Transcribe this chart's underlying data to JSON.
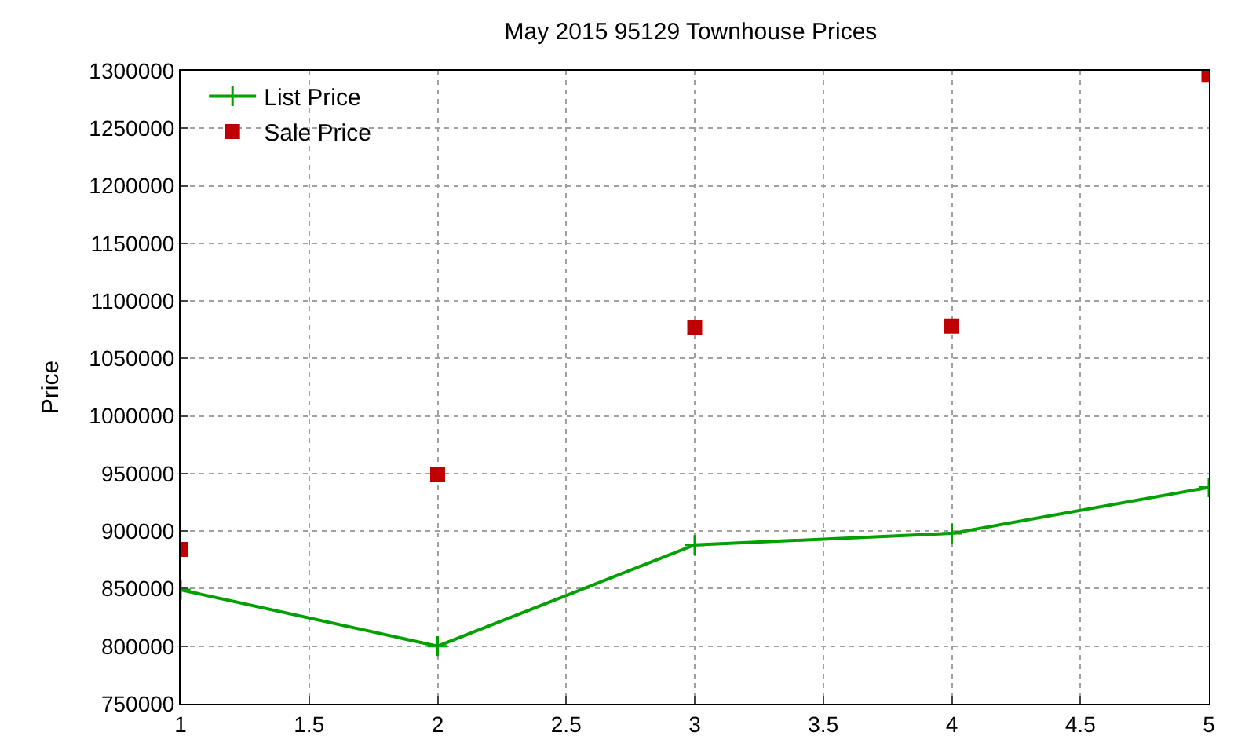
{
  "chart_data": {
    "type": "line",
    "title": "May 2015 95129 Townhouse Prices",
    "ylabel": "Price",
    "x": [
      1,
      2,
      3,
      4,
      5
    ],
    "series": [
      {
        "name": "List Price",
        "color": "#00a000",
        "marker": "cross",
        "values": [
          849000,
          800000,
          888000,
          898000,
          938000
        ]
      },
      {
        "name": "Sale Price",
        "type": "scatter",
        "color": "#c00000",
        "marker": "square",
        "values": [
          884000,
          949000,
          1077000,
          1078000,
          1296000
        ]
      }
    ],
    "xlim": [
      1,
      5
    ],
    "xticks": [
      1,
      1.5,
      2,
      2.5,
      3,
      3.5,
      4,
      4.5,
      5
    ],
    "ylim": [
      750000,
      1300000
    ],
    "yticks": [
      750000,
      800000,
      850000,
      900000,
      950000,
      1000000,
      1050000,
      1100000,
      1150000,
      1200000,
      1250000,
      1300000
    ],
    "grid": true,
    "legend": "top left"
  }
}
